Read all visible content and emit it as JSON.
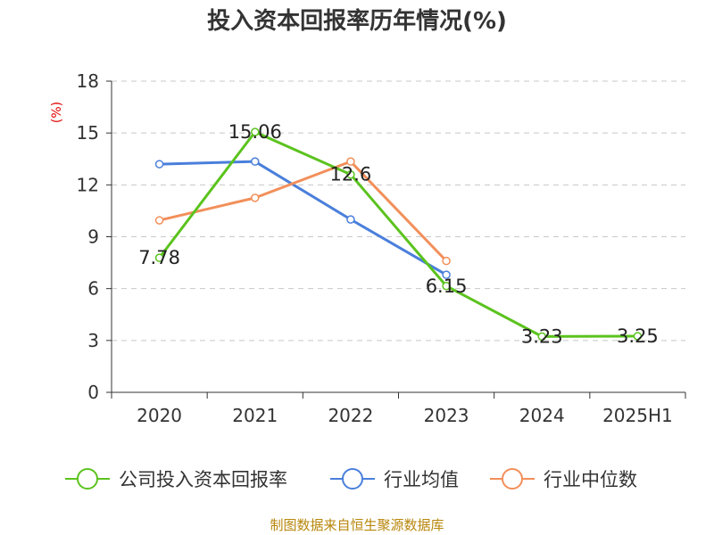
{
  "chart_data": {
    "type": "line",
    "title": "投入资本回报率历年情况(%)",
    "ylabel": "(%)",
    "xlabel": "",
    "categories": [
      "2020",
      "2021",
      "2022",
      "2023",
      "2024",
      "2025H1"
    ],
    "ylim": [
      0,
      18
    ],
    "yticks": [
      0,
      3,
      6,
      9,
      12,
      15,
      18
    ],
    "grid": true,
    "legend_position": "bottom",
    "series": [
      {
        "name": "公司投入资本回报率",
        "color": "#5bc31e",
        "values": [
          7.78,
          15.06,
          12.6,
          6.15,
          3.23,
          3.25
        ],
        "labels": [
          "7.78",
          "15.06",
          "12.6",
          "6.15",
          "3.23",
          "3.25"
        ]
      },
      {
        "name": "行业均值",
        "color": "#4a7fdb",
        "values": [
          13.2,
          13.35,
          10.0,
          6.8,
          null,
          null
        ]
      },
      {
        "name": "行业中位数",
        "color": "#f28f5a",
        "values": [
          9.95,
          11.25,
          13.35,
          7.6,
          null,
          null
        ]
      }
    ]
  },
  "source": "制图数据来自恒生聚源数据库"
}
